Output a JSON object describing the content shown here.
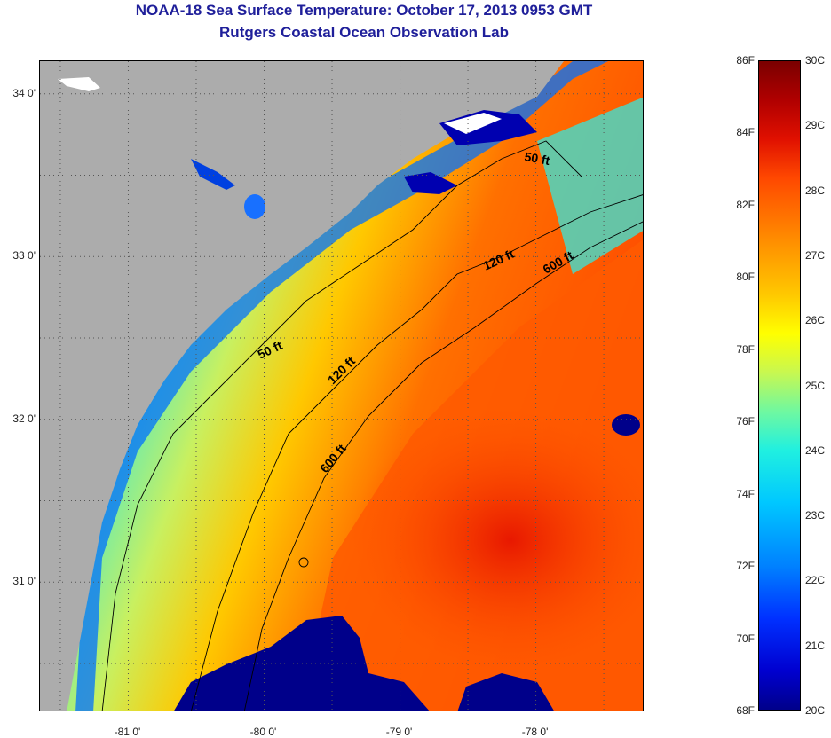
{
  "title": {
    "line1": "NOAA-18 Sea Surface Temperature:  October 17, 2013 0953 GMT",
    "line2": "Rutgers Coastal Ocean Observation Lab"
  },
  "map": {
    "lat_range": [
      30.2,
      34.2
    ],
    "lon_range": [
      -81.65,
      -77.2
    ],
    "y_ticks": [
      {
        "value": 34,
        "label": "34 0'"
      },
      {
        "value": 33,
        "label": "33 0'"
      },
      {
        "value": 32,
        "label": "32 0'"
      },
      {
        "value": 31,
        "label": "31 0'"
      }
    ],
    "x_ticks": [
      {
        "value": -81,
        "label": "-81 0'"
      },
      {
        "value": -80,
        "label": "-80 0'"
      },
      {
        "value": -79,
        "label": "-79 0'"
      },
      {
        "value": -78,
        "label": "-78 0'"
      }
    ],
    "contours": [
      {
        "label": "50 ft",
        "depth_ft": 50
      },
      {
        "label": "120 ft",
        "depth_ft": 120
      },
      {
        "label": "600 ft",
        "depth_ft": 600
      }
    ],
    "colors": {
      "land": "#acacac",
      "cloud": "#00008a",
      "contour_line": "#000000"
    }
  },
  "colorbar": {
    "fahrenheit": [
      "86F",
      "84F",
      "82F",
      "80F",
      "78F",
      "76F",
      "74F",
      "72F",
      "70F",
      "68F"
    ],
    "celsius": [
      "30C",
      "29C",
      "28C",
      "27C",
      "26C",
      "25C",
      "24C",
      "23C",
      "22C",
      "21C",
      "20C"
    ],
    "range_f": [
      68,
      86
    ],
    "range_c": [
      20,
      30
    ]
  }
}
